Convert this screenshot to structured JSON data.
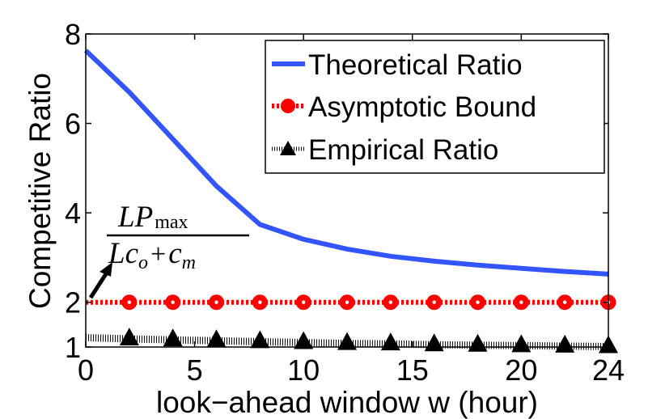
{
  "chart_data": {
    "type": "line",
    "xlabel": "look−ahead window w (hour)",
    "ylabel": "Competitive Ratio",
    "xlim": [
      0,
      24
    ],
    "ylim": [
      1,
      8
    ],
    "xticks": [
      0,
      5,
      10,
      15,
      20,
      24
    ],
    "yticks": [
      1,
      2,
      4,
      6,
      8
    ],
    "grid": false,
    "legend_position": "top-right",
    "annotation": {
      "num_main": "LP",
      "num_sub": "max",
      "den_main1": "Lc",
      "den_sub1": "o",
      "den_plus": "+",
      "den_main2": "c",
      "den_sub2": "m",
      "points_to": [
        0,
        2.0
      ]
    },
    "series": [
      {
        "name": "Theoretical Ratio",
        "color": "#3355ff",
        "style": "solid",
        "marker": "none",
        "x": [
          0,
          2,
          4,
          6,
          8,
          10,
          12,
          14,
          16,
          18,
          20,
          22,
          24
        ],
        "y": [
          7.63,
          6.7,
          5.65,
          4.6,
          3.74,
          3.41,
          3.19,
          3.03,
          2.92,
          2.83,
          2.76,
          2.69,
          2.63
        ]
      },
      {
        "name": "Asymptotic Bound",
        "color": "#ff0000",
        "style": "dotted",
        "marker": "circle",
        "x": [
          0,
          2,
          4,
          6,
          8,
          10,
          12,
          14,
          16,
          18,
          20,
          22,
          24
        ],
        "y": [
          2.0,
          2.0,
          2.0,
          2.0,
          2.0,
          2.0,
          2.0,
          2.0,
          2.0,
          2.0,
          2.0,
          2.0,
          2.0
        ]
      },
      {
        "name": "Empirical Ratio",
        "color": "#000000",
        "style": "dotted",
        "marker": "triangle",
        "x": [
          0,
          2,
          4,
          6,
          8,
          10,
          12,
          14,
          16,
          18,
          20,
          22,
          24
        ],
        "y": [
          1.21,
          1.18,
          1.16,
          1.14,
          1.12,
          1.1,
          1.08,
          1.07,
          1.05,
          1.04,
          1.03,
          1.02,
          1.01
        ]
      }
    ]
  }
}
